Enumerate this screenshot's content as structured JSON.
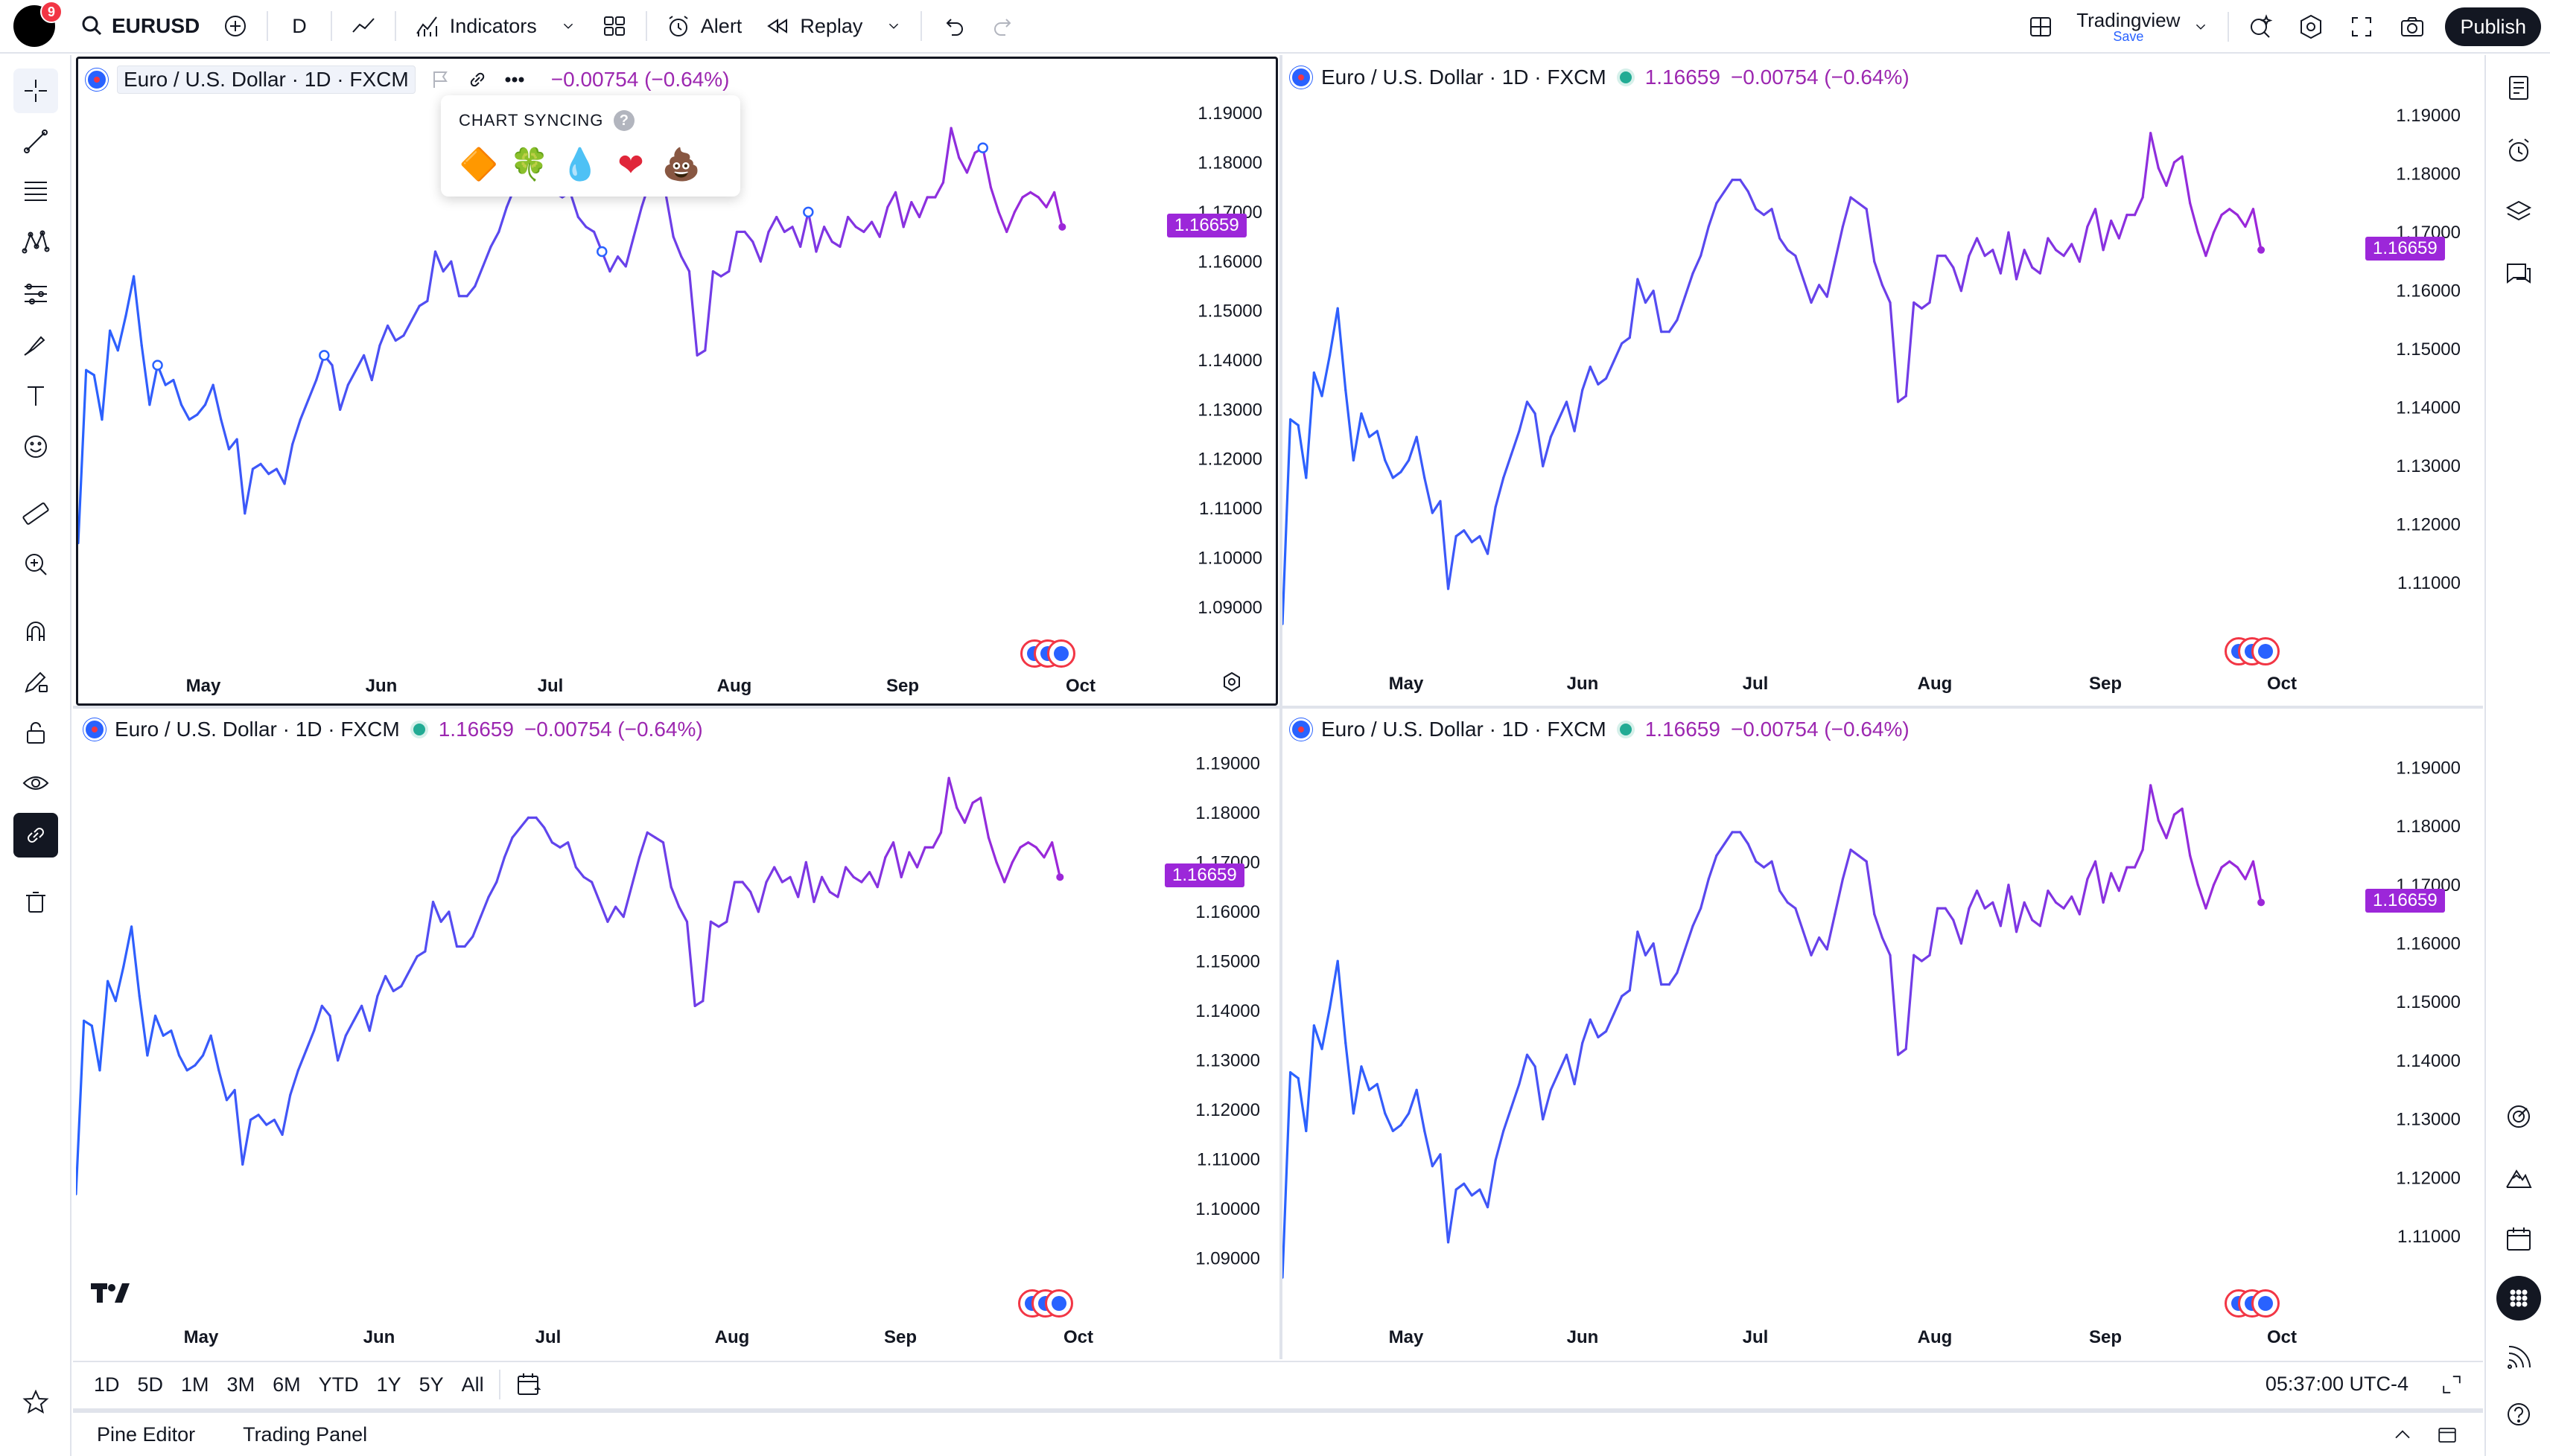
{
  "topbar": {
    "notifications": "9",
    "symbol": "EURUSD",
    "interval": "D",
    "indicators_label": "Indicators",
    "alert_label": "Alert",
    "replay_label": "Replay",
    "layout_name": "Tradingview",
    "layout_save": "Save",
    "publish_label": "Publish"
  },
  "chart_syncing": {
    "header": "CHART SYNCING",
    "help": "?",
    "options": [
      "🔶",
      "🍀",
      "💧",
      "❤",
      "💩"
    ]
  },
  "bottom": {
    "ranges": [
      "1D",
      "5D",
      "1M",
      "3M",
      "6M",
      "YTD",
      "1Y",
      "5Y",
      "All"
    ],
    "clock": "05:37:00 UTC-4"
  },
  "footer": {
    "pine_editor": "Pine Editor",
    "trading_panel": "Trading Panel"
  },
  "panes": [
    {
      "title": "Euro / U.S. Dollar · 1D · FXCM",
      "value": "",
      "change": "−0.00754 (−0.64%)",
      "last": "1.16659",
      "active": true
    },
    {
      "title": "Euro / U.S. Dollar · 1D · FXCM",
      "value": "1.16659",
      "change": "−0.00754 (−0.64%)",
      "last": "1.16659",
      "active": false
    },
    {
      "title": "Euro / U.S. Dollar · 1D · FXCM",
      "value": "1.16659",
      "change": "−0.00754 (−0.64%)",
      "last": "1.16659",
      "active": false
    },
    {
      "title": "Euro / U.S. Dollar · 1D · FXCM",
      "value": "1.16659",
      "change": "−0.00754 (−0.64%)",
      "last": "1.16659",
      "active": false
    }
  ],
  "chart_data": [
    {
      "type": "line",
      "title": "Euro / U.S. Dollar · 1D · FXCM",
      "x_ticks": [
        "May",
        "Jun",
        "Jul",
        "Aug",
        "Sep",
        "Oct"
      ],
      "y_ticks": [
        "1.19000",
        "1.18000",
        "1.17000",
        "1.16000",
        "1.15000",
        "1.14000",
        "1.13000",
        "1.12000",
        "1.11000",
        "1.10000",
        "1.09000"
      ],
      "ylim": [
        1.085,
        1.195
      ],
      "last_value": 1.16659,
      "colors": {
        "start": "#2962ff",
        "end": "#9c27d9"
      },
      "values": [
        1.103,
        1.138,
        1.137,
        1.128,
        1.146,
        1.142,
        1.149,
        1.157,
        1.143,
        1.131,
        1.139,
        1.135,
        1.136,
        1.131,
        1.128,
        1.129,
        1.131,
        1.135,
        1.128,
        1.122,
        1.124,
        1.109,
        1.118,
        1.119,
        1.117,
        1.118,
        1.115,
        1.123,
        1.128,
        1.132,
        1.136,
        1.141,
        1.139,
        1.13,
        1.135,
        1.138,
        1.141,
        1.136,
        1.143,
        1.147,
        1.144,
        1.145,
        1.148,
        1.151,
        1.152,
        1.162,
        1.158,
        1.16,
        1.153,
        1.153,
        1.155,
        1.159,
        1.163,
        1.166,
        1.171,
        1.175,
        1.177,
        1.179,
        1.179,
        1.177,
        1.174,
        1.173,
        1.174,
        1.169,
        1.167,
        1.166,
        1.162,
        1.158,
        1.161,
        1.159,
        1.165,
        1.171,
        1.176,
        1.175,
        1.174,
        1.165,
        1.161,
        1.158,
        1.141,
        1.142,
        1.158,
        1.157,
        1.158,
        1.166,
        1.166,
        1.164,
        1.16,
        1.166,
        1.169,
        1.166,
        1.167,
        1.163,
        1.17,
        1.162,
        1.167,
        1.164,
        1.163,
        1.169,
        1.167,
        1.166,
        1.168,
        1.165,
        1.171,
        1.174,
        1.167,
        1.172,
        1.169,
        1.173,
        1.173,
        1.176,
        1.187,
        1.181,
        1.178,
        1.182,
        1.183,
        1.175,
        1.17,
        1.166,
        1.17,
        1.173,
        1.174,
        1.173,
        1.171,
        1.174,
        1.167
      ]
    },
    {
      "type": "line",
      "title": "Euro / U.S. Dollar · 1D · FXCM",
      "x_ticks": [
        "May",
        "Jun",
        "Jul",
        "Aug",
        "Sep",
        "Oct"
      ],
      "y_ticks": [
        "1.19000",
        "1.18000",
        "1.17000",
        "1.16000",
        "1.15000",
        "1.14000",
        "1.13000",
        "1.12000",
        "1.11000"
      ],
      "ylim": [
        1.102,
        1.195
      ],
      "last_value": 1.16659,
      "colors": {
        "start": "#2962ff",
        "end": "#9c27d9"
      }
    },
    {
      "type": "line",
      "title": "Euro / U.S. Dollar · 1D · FXCM",
      "x_ticks": [
        "May",
        "Jun",
        "Jul",
        "Aug",
        "Sep",
        "Oct"
      ],
      "y_ticks": [
        "1.19000",
        "1.18000",
        "1.17000",
        "1.16000",
        "1.15000",
        "1.14000",
        "1.13000",
        "1.12000",
        "1.11000",
        "1.10000",
        "1.09000"
      ],
      "ylim": [
        1.085,
        1.195
      ],
      "last_value": 1.16659,
      "colors": {
        "start": "#2962ff",
        "end": "#9c27d9"
      }
    },
    {
      "type": "line",
      "title": "Euro / U.S. Dollar · 1D · FXCM",
      "x_ticks": [
        "May",
        "Jun",
        "Jul",
        "Aug",
        "Sep",
        "Oct"
      ],
      "y_ticks": [
        "1.19000",
        "1.18000",
        "1.17000",
        "1.16000",
        "1.15000",
        "1.14000",
        "1.13000",
        "1.12000",
        "1.11000"
      ],
      "ylim": [
        1.102,
        1.195
      ],
      "last_value": 1.16659,
      "colors": {
        "start": "#2962ff",
        "end": "#9c27d9"
      }
    }
  ]
}
